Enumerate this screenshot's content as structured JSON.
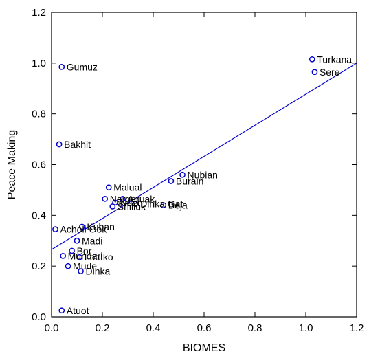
{
  "chart_data": {
    "type": "scatter",
    "xlabel": "BIOMES",
    "ylabel": "Peace Making",
    "xlim": [
      0,
      1.2
    ],
    "ylim": [
      0,
      1.2
    ],
    "xticks": [
      "0.0",
      "0.2",
      "0.4",
      "0.6",
      "0.8",
      "1.0",
      "1.2"
    ],
    "yticks": [
      "0.0",
      "0.2",
      "0.4",
      "0.6",
      "0.8",
      "1.0",
      "1.2"
    ],
    "grid": false,
    "point_color": "#0000cc",
    "line_color": "#0000cc",
    "fit_line": {
      "x": [
        0,
        1.2
      ],
      "y": [
        0.265,
        1.0
      ]
    },
    "points": [
      {
        "label": "Gumuz",
        "x": 0.04,
        "y": 0.985
      },
      {
        "label": "Turkana",
        "x": 1.025,
        "y": 1.015
      },
      {
        "label": "Sere",
        "x": 1.035,
        "y": 0.965
      },
      {
        "label": "Bakhit",
        "x": 0.03,
        "y": 0.68
      },
      {
        "label": "Nubian",
        "x": 0.515,
        "y": 0.56
      },
      {
        "label": "Burain",
        "x": 0.47,
        "y": 0.535
      },
      {
        "label": "Malual",
        "x": 0.225,
        "y": 0.51
      },
      {
        "label": "Anuak",
        "x": 0.28,
        "y": 0.465
      },
      {
        "label": "Nerger",
        "x": 0.21,
        "y": 0.465
      },
      {
        "label": "Shilluk",
        "x": 0.24,
        "y": 0.435
      },
      {
        "label": "Nuer",
        "x": 0.25,
        "y": 0.45
      },
      {
        "label": "Dinka Gat",
        "x": 0.33,
        "y": 0.445
      },
      {
        "label": "Beja",
        "x": 0.44,
        "y": 0.44
      },
      {
        "label": "Acholi Ook",
        "x": 0.015,
        "y": 0.345
      },
      {
        "label": "Kuban",
        "x": 0.12,
        "y": 0.355
      },
      {
        "label": "Madi",
        "x": 0.1,
        "y": 0.3
      },
      {
        "label": "Bor",
        "x": 0.08,
        "y": 0.26
      },
      {
        "label": "Mundari",
        "x": 0.045,
        "y": 0.24
      },
      {
        "label": "Lotuko",
        "x": 0.11,
        "y": 0.235
      },
      {
        "label": "Murle",
        "x": 0.065,
        "y": 0.2
      },
      {
        "label": "Dinka",
        "x": 0.115,
        "y": 0.18
      },
      {
        "label": "Atuot",
        "x": 0.04,
        "y": 0.025
      }
    ]
  }
}
